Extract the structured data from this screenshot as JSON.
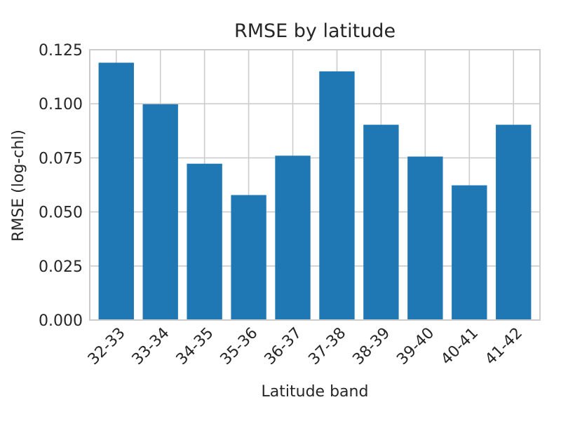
{
  "chart_data": {
    "type": "bar",
    "title": "RMSE by latitude",
    "xlabel": "Latitude band",
    "ylabel": "RMSE (log-chl)",
    "categories": [
      "32-33",
      "33-34",
      "34-35",
      "35-36",
      "36-37",
      "37-38",
      "38-39",
      "39-40",
      "40-41",
      "41-42"
    ],
    "values": [
      0.119,
      0.0998,
      0.0723,
      0.0578,
      0.076,
      0.115,
      0.0903,
      0.0756,
      0.0623,
      0.0903
    ],
    "ylim": [
      0,
      0.125
    ],
    "yticks": [
      "0.000",
      "0.025",
      "0.050",
      "0.075",
      "0.100",
      "0.125"
    ],
    "grid": true,
    "bar_color": "#1f77b4",
    "grid_color": "#cccccc",
    "frame_color": "#cccccc"
  }
}
